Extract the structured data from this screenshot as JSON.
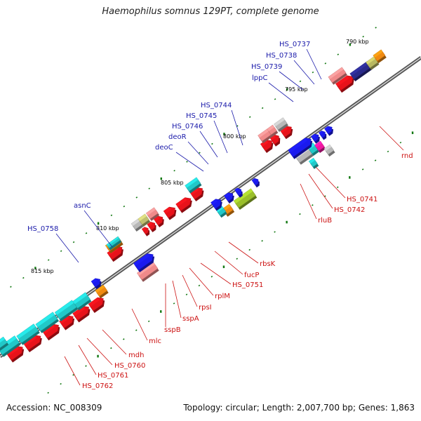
{
  "title": "Haemophilus somnus 129PT, complete genome",
  "footer": {
    "accession": "Accession: NC_008309",
    "topology": "Topology: circular; Length: 2,007,700 bp; Genes: 1,863"
  },
  "scale_ticks": [
    "790 kbp",
    "795 kbp",
    "800 kbp",
    "805 kbp",
    "810 kbp",
    "815 kbp"
  ],
  "gene_labels_top": [
    "HS_0737",
    "HS_0738",
    "HS_0739",
    "lppC",
    "HS_0744",
    "HS_0745",
    "HS_0746",
    "deoR",
    "deoC",
    "asnC",
    "HS_0758"
  ],
  "gene_labels_bottom": [
    "rnd",
    "HS_0741",
    "HS_0742",
    "rluB",
    "rbsK",
    "fucP",
    "HS_0751",
    "rplM",
    "rpsI",
    "sspA",
    "sspB",
    "mlc",
    "mdh",
    "HS_0760",
    "HS_0761",
    "HS_0762"
  ],
  "colors": {
    "forward_cds": "#e8121a",
    "forward_light": "#f08a8a",
    "reverse_cds": "#1a1aee",
    "cyan": "#22c8c8",
    "orange": "#f08a10",
    "grey": "#b8b8b8",
    "olive": "#9abf2a",
    "label_blue": "#1a1aaa",
    "label_red": "#cc1111",
    "tick_green": "#117711",
    "backbone": "#777777"
  }
}
